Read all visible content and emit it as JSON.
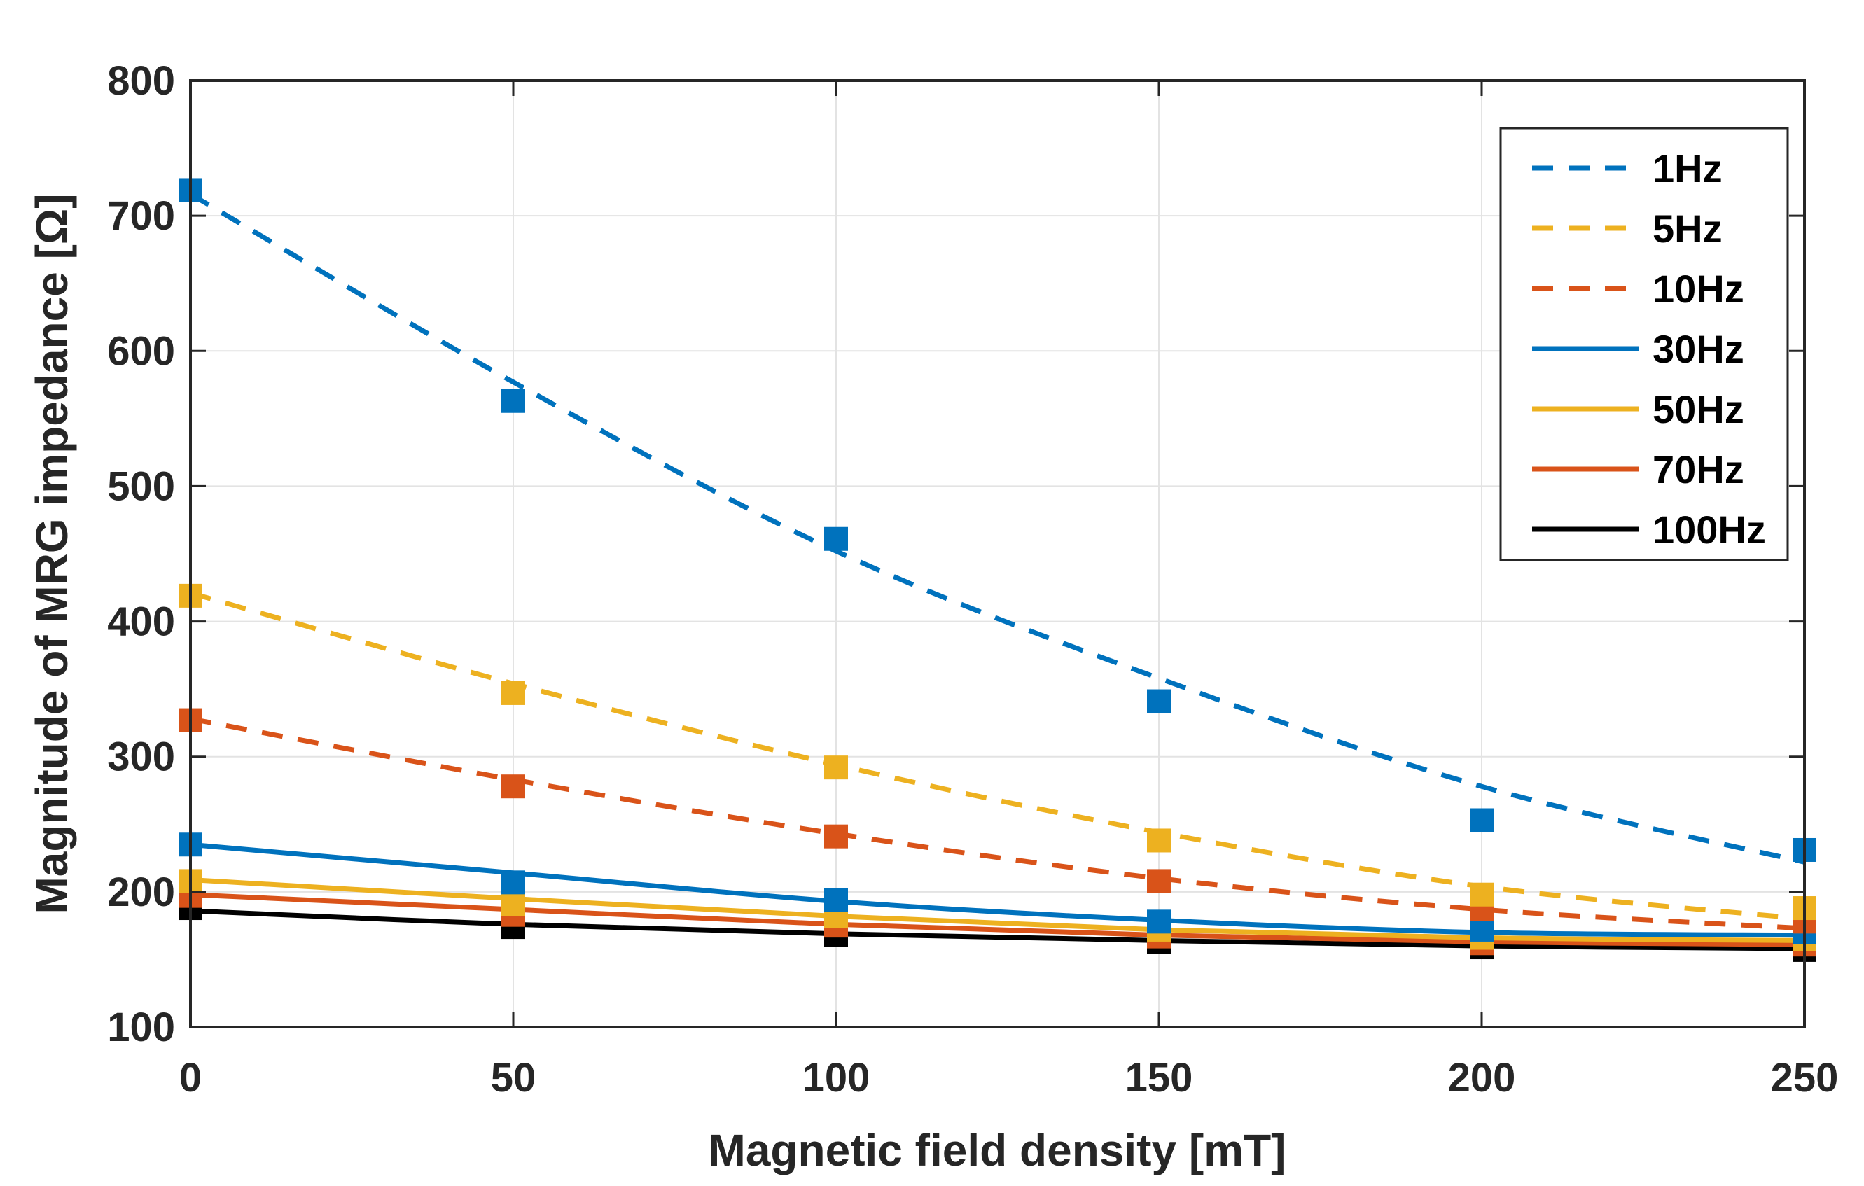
{
  "chart_data": {
    "type": "line",
    "title": "",
    "xlabel": "Magnetic field density [mT]",
    "ylabel": "Magnitude of MRG impedance [Ω]",
    "xlim": [
      0,
      250
    ],
    "ylim": [
      100,
      800
    ],
    "xticks": [
      0,
      50,
      100,
      150,
      200,
      250
    ],
    "yticks": [
      100,
      200,
      300,
      400,
      500,
      600,
      700,
      800
    ],
    "grid": true,
    "legend_position": "top-right",
    "x": [
      0,
      50,
      100,
      150,
      200,
      250
    ],
    "series": [
      {
        "name": "1Hz",
        "color": "#0072BD",
        "dashed": true,
        "markers": [
          719,
          563,
          461,
          341,
          253,
          231
        ],
        "fit": [
          716,
          577,
          452,
          358,
          278,
          222
        ]
      },
      {
        "name": "5Hz",
        "color": "#EDB120",
        "dashed": true,
        "markers": [
          419,
          347,
          292,
          238,
          198,
          188
        ],
        "fit": [
          421,
          354,
          294,
          244,
          204,
          180
        ]
      },
      {
        "name": "10Hz",
        "color": "#D95319",
        "dashed": true,
        "markers": [
          327,
          278,
          241,
          208,
          187,
          178
        ],
        "fit": [
          328,
          283,
          243,
          210,
          187,
          173
        ]
      },
      {
        "name": "30Hz",
        "color": "#0072BD",
        "dashed": false,
        "markers": [
          235,
          207,
          194,
          178,
          172,
          170
        ],
        "fit": [
          235,
          214,
          193,
          179,
          170,
          168
        ]
      },
      {
        "name": "50Hz",
        "color": "#EDB120",
        "dashed": false,
        "markers": [
          208,
          191,
          182,
          172,
          166,
          165
        ],
        "fit": [
          209,
          195,
          182,
          172,
          166,
          164
        ]
      },
      {
        "name": "70Hz",
        "color": "#D95319",
        "dashed": false,
        "markers": [
          197,
          183,
          175,
          167,
          162,
          161
        ],
        "fit": [
          198,
          187,
          176,
          168,
          163,
          161
        ]
      },
      {
        "name": "100Hz",
        "color": "#000000",
        "dashed": false,
        "markers": [
          188,
          174,
          168,
          163,
          159,
          157
        ],
        "fit": [
          186,
          176,
          169,
          164,
          160,
          158
        ]
      }
    ]
  }
}
